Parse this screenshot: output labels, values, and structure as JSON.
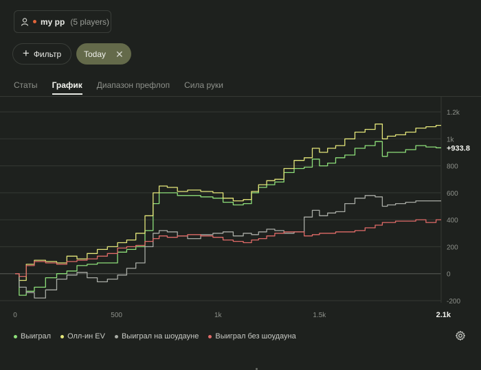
{
  "player": {
    "name": "my pp",
    "count": "(5 players)",
    "icon": "user-icon",
    "status_color": "#e0643a"
  },
  "filter": {
    "label": "Фильтр",
    "icon": "plus-icon"
  },
  "date_chip": {
    "label": "Today",
    "close_icon": "close-icon",
    "color": "#646a4a"
  },
  "tabs": [
    {
      "label": "Статы",
      "active": false
    },
    {
      "label": "График",
      "active": true
    },
    {
      "label": "Диапазон префлоп",
      "active": false
    },
    {
      "label": "Сила руки",
      "active": false
    }
  ],
  "current_value": "+933.8",
  "settings_icon": "gear-icon",
  "chart_data": {
    "type": "line",
    "x_ticks": [
      "0",
      "500",
      "1k",
      "1.5k",
      "2.1k"
    ],
    "y_ticks": [
      "1.2k",
      "1k",
      "800",
      "600",
      "400",
      "200",
      "0",
      "-200"
    ],
    "xlim": [
      0,
      2100
    ],
    "ylim": [
      -200,
      1200
    ],
    "grid": true,
    "legend_position": "bottom-left",
    "series": [
      {
        "name": "Выиграл",
        "color": "#8ee07a",
        "x": [
          0,
          40,
          70,
          120,
          180,
          230,
          280,
          330,
          380,
          430,
          480,
          530,
          570,
          620,
          660,
          700,
          720,
          780,
          820,
          880,
          950,
          1000,
          1050,
          1100,
          1150,
          1180,
          1220,
          1260,
          1300,
          1350,
          1400,
          1450,
          1480,
          1520,
          1560,
          1600,
          1650,
          1700,
          1750,
          1800,
          1820,
          1850,
          1900,
          1950,
          2000,
          2050,
          2100
        ],
        "y": [
          0,
          -160,
          -130,
          -100,
          -30,
          0,
          20,
          60,
          70,
          80,
          80,
          160,
          180,
          200,
          320,
          520,
          600,
          600,
          580,
          580,
          570,
          560,
          530,
          510,
          520,
          600,
          640,
          660,
          680,
          750,
          780,
          790,
          850,
          800,
          820,
          860,
          880,
          930,
          950,
          980,
          870,
          900,
          900,
          920,
          950,
          940,
          933.8
        ]
      },
      {
        "name": "Олл-ин EV",
        "color": "#e4e67a",
        "x": [
          0,
          40,
          70,
          120,
          180,
          230,
          280,
          330,
          380,
          430,
          480,
          530,
          570,
          620,
          660,
          700,
          720,
          780,
          820,
          880,
          950,
          1000,
          1050,
          1100,
          1150,
          1180,
          1220,
          1260,
          1300,
          1350,
          1400,
          1450,
          1480,
          1520,
          1560,
          1600,
          1650,
          1700,
          1750,
          1800,
          1820,
          1850,
          1900,
          1950,
          2000,
          2050,
          2100
        ],
        "y": [
          0,
          -50,
          70,
          100,
          90,
          80,
          130,
          110,
          150,
          180,
          200,
          230,
          250,
          300,
          430,
          600,
          650,
          640,
          610,
          620,
          610,
          600,
          560,
          540,
          550,
          610,
          660,
          690,
          700,
          780,
          840,
          860,
          930,
          900,
          930,
          950,
          1000,
          1050,
          1070,
          1110,
          1000,
          1020,
          1030,
          1050,
          1080,
          1090,
          1100
        ]
      },
      {
        "name": "Выиграл на шоудауне",
        "color": "#a9aca6",
        "x": [
          0,
          40,
          70,
          120,
          180,
          230,
          280,
          330,
          380,
          430,
          480,
          530,
          570,
          620,
          660,
          700,
          720,
          780,
          820,
          880,
          950,
          1000,
          1050,
          1100,
          1150,
          1180,
          1220,
          1260,
          1300,
          1350,
          1400,
          1450,
          1480,
          1520,
          1560,
          1600,
          1650,
          1700,
          1750,
          1800,
          1820,
          1850,
          1900,
          1950,
          2000,
          2050,
          2100
        ],
        "y": [
          0,
          -100,
          -140,
          -180,
          -120,
          -40,
          -10,
          10,
          -30,
          -60,
          -40,
          -10,
          40,
          80,
          200,
          300,
          320,
          310,
          280,
          260,
          290,
          300,
          310,
          280,
          300,
          290,
          310,
          330,
          320,
          300,
          310,
          420,
          470,
          430,
          450,
          460,
          520,
          560,
          580,
          570,
          500,
          510,
          520,
          530,
          540,
          540,
          540
        ]
      },
      {
        "name": "Выиграл без шоудауна",
        "color": "#e06b68",
        "x": [
          0,
          40,
          70,
          120,
          180,
          230,
          280,
          330,
          380,
          430,
          480,
          530,
          570,
          620,
          660,
          700,
          720,
          780,
          820,
          880,
          950,
          1000,
          1050,
          1100,
          1150,
          1180,
          1220,
          1260,
          1300,
          1350,
          1400,
          1450,
          1480,
          1520,
          1560,
          1600,
          1650,
          1700,
          1750,
          1800,
          1820,
          1850,
          1900,
          1950,
          2000,
          2050,
          2100
        ],
        "y": [
          0,
          -20,
          60,
          90,
          80,
          70,
          90,
          100,
          110,
          130,
          150,
          190,
          200,
          210,
          240,
          260,
          280,
          270,
          280,
          290,
          280,
          270,
          250,
          240,
          230,
          250,
          260,
          280,
          300,
          310,
          310,
          280,
          290,
          300,
          300,
          310,
          310,
          320,
          340,
          360,
          380,
          380,
          390,
          390,
          400,
          380,
          400
        ]
      }
    ]
  }
}
